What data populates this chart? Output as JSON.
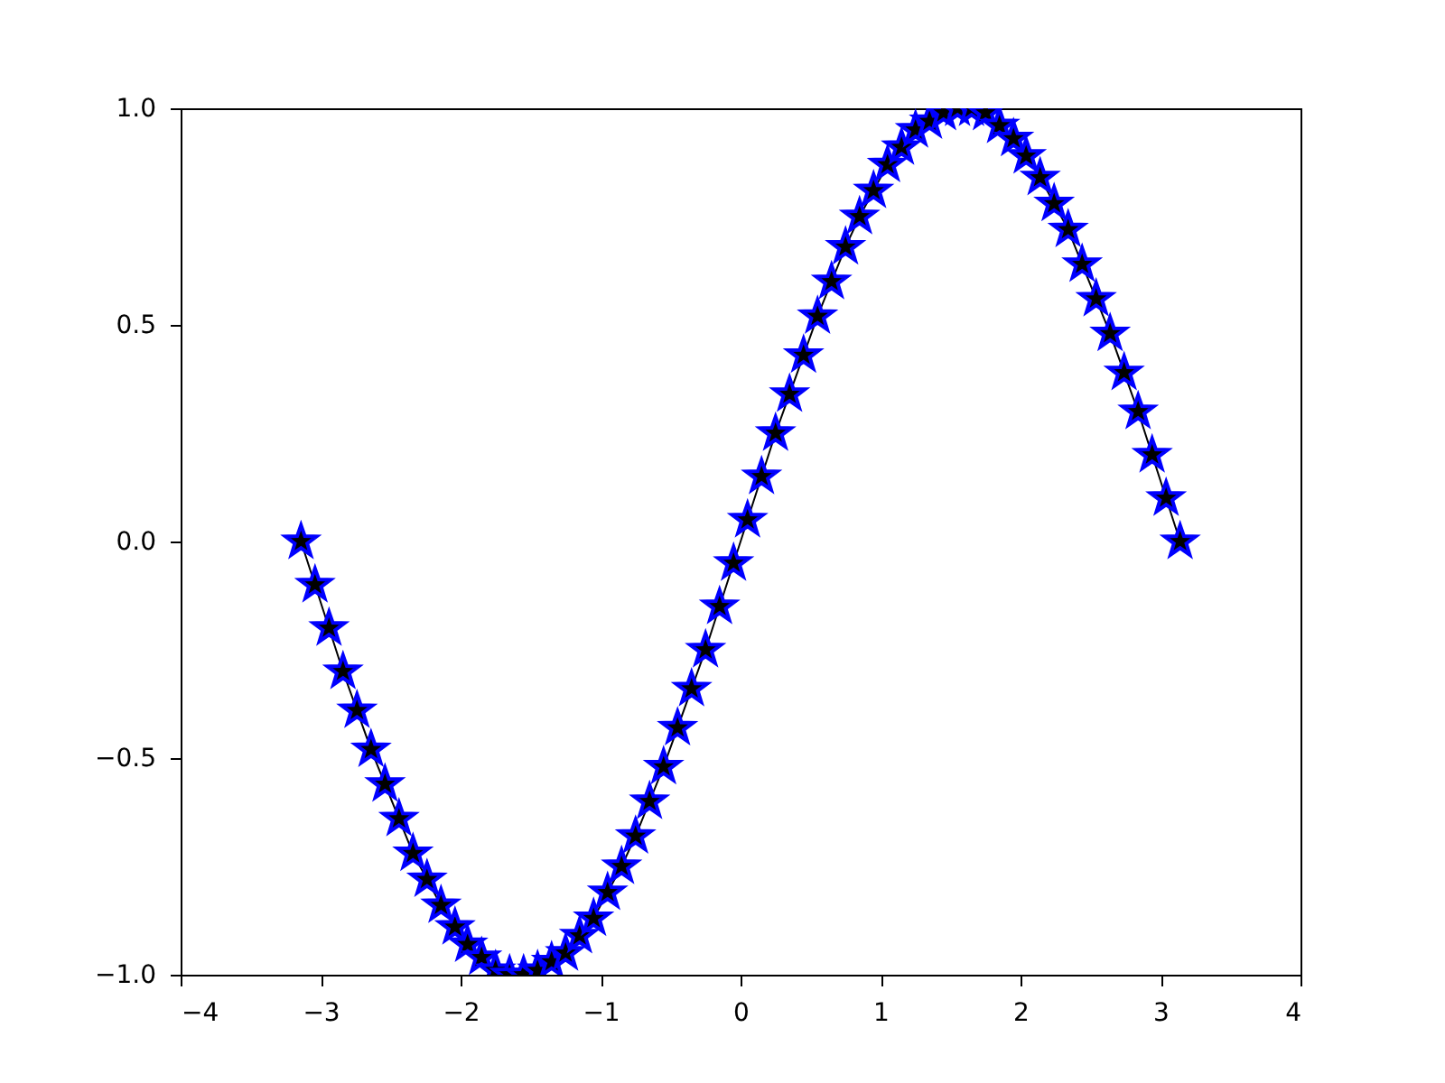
{
  "chart_data": {
    "type": "line",
    "marker": "star",
    "line_style": "solid",
    "grid": false,
    "xlim": [
      -4,
      4
    ],
    "xticks": [
      {
        "value": -4,
        "label": "−4"
      },
      {
        "value": -3,
        "label": "−3"
      },
      {
        "value": -2,
        "label": "−2"
      },
      {
        "value": -1,
        "label": "−1"
      },
      {
        "value": 0,
        "label": "0"
      },
      {
        "value": 1,
        "label": "1"
      },
      {
        "value": 2,
        "label": "2"
      },
      {
        "value": 3,
        "label": "3"
      },
      {
        "value": 4,
        "label": "4"
      }
    ],
    "ylim": [
      -1,
      1
    ],
    "yticks": [
      {
        "value": -1,
        "label": "−1.0"
      },
      {
        "value": -0.5,
        "label": "−0.5"
      },
      {
        "value": 0,
        "label": "0.0"
      },
      {
        "value": 0.5,
        "label": "0.5"
      },
      {
        "value": 1,
        "label": "1.0"
      }
    ],
    "series": [
      {
        "color": "#000000",
        "x": [
          -3.14,
          -3.04,
          -2.94,
          -2.84,
          -2.74,
          -2.64,
          -2.54,
          -2.44,
          -2.34,
          -2.24,
          -2.14,
          -2.04,
          -1.95,
          -1.85,
          -1.75,
          -1.65,
          -1.55,
          -1.45,
          -1.35,
          -1.25,
          -1.15,
          -1.05,
          -0.95,
          -0.85,
          -0.75,
          -0.65,
          -0.55,
          -0.45,
          -0.35,
          -0.25,
          -0.15,
          -0.05,
          0.05,
          0.15,
          0.25,
          0.35,
          0.45,
          0.55,
          0.65,
          0.75,
          0.85,
          0.95,
          1.05,
          1.15,
          1.25,
          1.35,
          1.45,
          1.55,
          1.65,
          1.75,
          1.85,
          1.95,
          2.04,
          2.14,
          2.24,
          2.34,
          2.44,
          2.54,
          2.64,
          2.74,
          2.84,
          2.94,
          3.04,
          3.14
        ],
        "values": [
          0,
          -0.1,
          -0.2,
          -0.3,
          -0.39,
          -0.48,
          -0.56,
          -0.64,
          -0.72,
          -0.78,
          -0.84,
          -0.89,
          -0.93,
          -0.96,
          -0.99,
          -1.0,
          -1.0,
          -0.99,
          -0.97,
          -0.95,
          -0.91,
          -0.87,
          -0.81,
          -0.75,
          -0.68,
          -0.6,
          -0.52,
          -0.43,
          -0.34,
          -0.25,
          -0.15,
          -0.05,
          0.05,
          0.15,
          0.25,
          0.34,
          0.43,
          0.52,
          0.6,
          0.68,
          0.75,
          0.81,
          0.87,
          0.91,
          0.95,
          0.97,
          0.99,
          1.0,
          1.0,
          0.99,
          0.96,
          0.93,
          0.89,
          0.84,
          0.78,
          0.72,
          0.64,
          0.56,
          0.48,
          0.39,
          0.3,
          0.2,
          0.1,
          0
        ]
      }
    ]
  }
}
